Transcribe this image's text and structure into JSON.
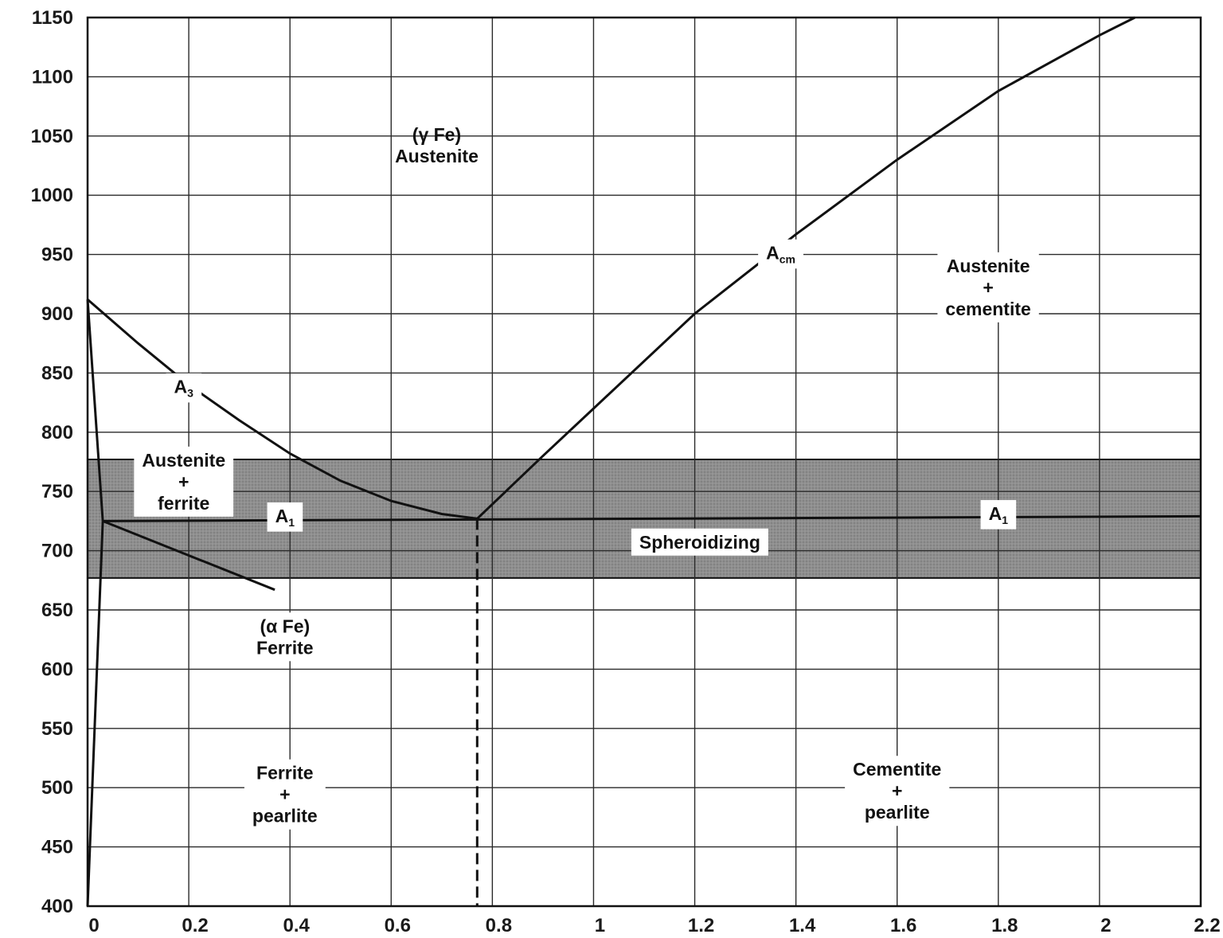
{
  "chart_data": {
    "type": "line",
    "title": "",
    "xlabel": "",
    "ylabel": "",
    "xlim": [
      0,
      2.2
    ],
    "ylim": [
      400,
      1150
    ],
    "grid": true,
    "x_ticks": [
      "0",
      "0.2",
      "0.4",
      "0.6",
      "0.8",
      "1",
      "1.2",
      "1.4",
      "1.6",
      "1.8",
      "2",
      "2.2"
    ],
    "y_ticks": [
      "400",
      "450",
      "500",
      "550",
      "600",
      "650",
      "700",
      "750",
      "800",
      "850",
      "900",
      "950",
      "1000",
      "1050",
      "1100",
      "1150"
    ],
    "band": {
      "name": "Spheroidizing",
      "y_min": 677,
      "y_max": 777,
      "color": "#8f8f8f"
    },
    "series": [
      {
        "name": "A3",
        "color": "#111111",
        "points": [
          [
            0,
            912
          ],
          [
            0.1,
            875
          ],
          [
            0.2,
            840
          ],
          [
            0.3,
            810
          ],
          [
            0.4,
            782
          ],
          [
            0.5,
            759
          ],
          [
            0.6,
            742
          ],
          [
            0.7,
            731
          ],
          [
            0.77,
            727
          ]
        ]
      },
      {
        "name": "Acm",
        "color": "#111111",
        "points": [
          [
            0.77,
            727
          ],
          [
            0.9,
            780
          ],
          [
            1.0,
            820
          ],
          [
            1.2,
            900
          ],
          [
            1.4,
            967
          ],
          [
            1.6,
            1030
          ],
          [
            1.8,
            1088
          ],
          [
            2.0,
            1135
          ],
          [
            2.07,
            1150
          ]
        ]
      },
      {
        "name": "A1",
        "color": "#111111",
        "points": [
          [
            0.03,
            725
          ],
          [
            2.2,
            729
          ]
        ]
      },
      {
        "name": "",
        "color": "#111111",
        "points": [
          [
            0,
            912
          ],
          [
            0.03,
            725
          ]
        ]
      },
      {
        "name": "",
        "color": "#111111",
        "points": [
          [
            0.03,
            725
          ],
          [
            0,
            400
          ]
        ]
      },
      {
        "name": "",
        "color": "#111111",
        "points": [
          [
            0.03,
            725
          ],
          [
            0.37,
            667
          ]
        ]
      },
      {
        "name": "",
        "color": "#111111",
        "dashed": true,
        "points": [
          [
            0.77,
            727
          ],
          [
            0.77,
            400
          ]
        ]
      }
    ],
    "annotations": [
      {
        "lines": [
          "(γ Fe)",
          "Austenite"
        ],
        "x": 0.69,
        "y": 1041,
        "box": false
      },
      {
        "lines": [
          "A",
          "cm"
        ],
        "x": 1.37,
        "y": 950,
        "box": true,
        "subscript": true
      },
      {
        "lines": [
          "Austenite",
          "+",
          "cementite"
        ],
        "x": 1.78,
        "y": 921,
        "box": true
      },
      {
        "lines": [
          "A",
          "3"
        ],
        "x": 0.19,
        "y": 837,
        "box": true,
        "subscript": true
      },
      {
        "lines": [
          "Austenite",
          "+",
          "ferrite"
        ],
        "x": 0.19,
        "y": 757,
        "box": true
      },
      {
        "lines": [
          "A",
          "1"
        ],
        "x": 0.39,
        "y": 728,
        "box": true,
        "subscript": true
      },
      {
        "lines": [
          "A",
          "1"
        ],
        "x": 1.8,
        "y": 730,
        "box": true,
        "subscript": true
      },
      {
        "lines": [
          "Spheroidizing"
        ],
        "x": 1.21,
        "y": 706,
        "box": true
      },
      {
        "lines": [
          "(α Fe)",
          "Ferrite"
        ],
        "x": 0.39,
        "y": 626,
        "box": true
      },
      {
        "lines": [
          "Ferrite",
          "+",
          "pearlite"
        ],
        "x": 0.39,
        "y": 493,
        "box": true
      },
      {
        "lines": [
          "Cementite",
          "+",
          "pearlite"
        ],
        "x": 1.6,
        "y": 496,
        "box": true
      }
    ]
  }
}
